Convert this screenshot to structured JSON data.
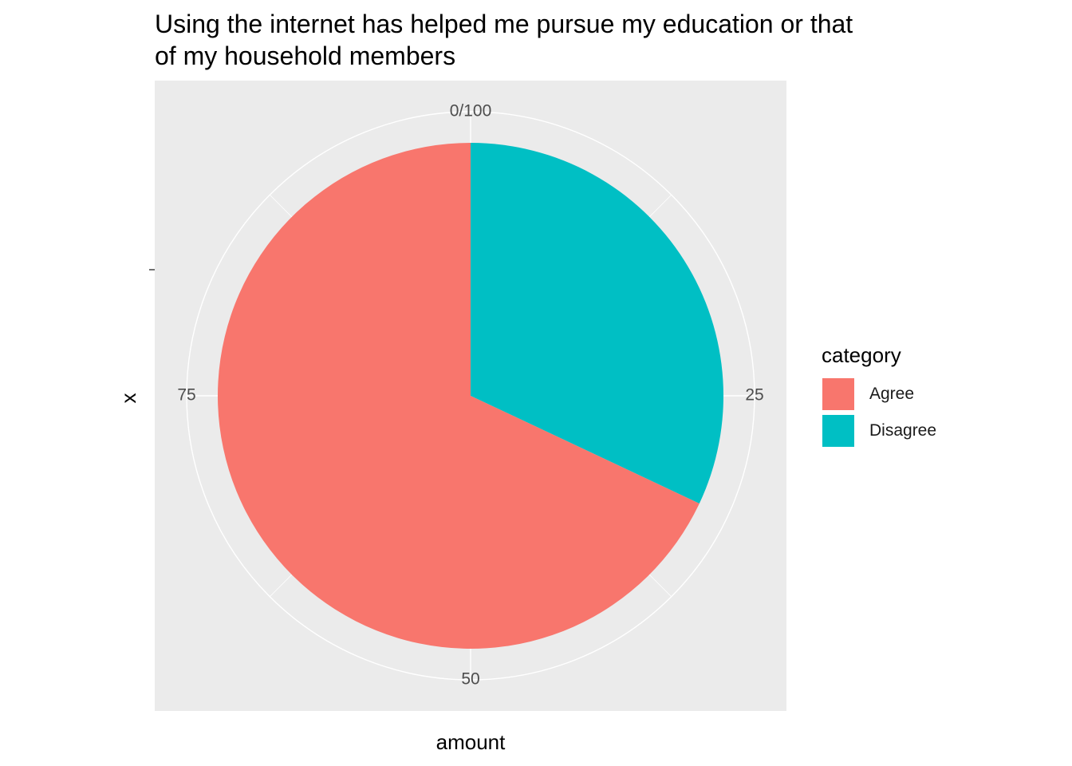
{
  "chart_data": {
    "type": "pie",
    "title": "Using the internet has helped me pursue my education or that\nof my household members",
    "xlabel": "amount",
    "ylabel": "x",
    "theta_range": [
      0,
      100
    ],
    "theta_ticks": [
      "0/100",
      "25",
      "50",
      "75"
    ],
    "categories": [
      "Agree",
      "Disagree"
    ],
    "values": [
      68,
      32
    ],
    "colors": [
      "#F8766D",
      "#00BFC4"
    ],
    "legend": {
      "title": "category",
      "position": "right",
      "items": [
        {
          "label": "Agree",
          "color": "#F8766D"
        },
        {
          "label": "Disagree",
          "color": "#00BFC4"
        }
      ]
    },
    "panel_background": "#EBEBEB",
    "grid_color": "#FFFFFF",
    "grid": true
  }
}
